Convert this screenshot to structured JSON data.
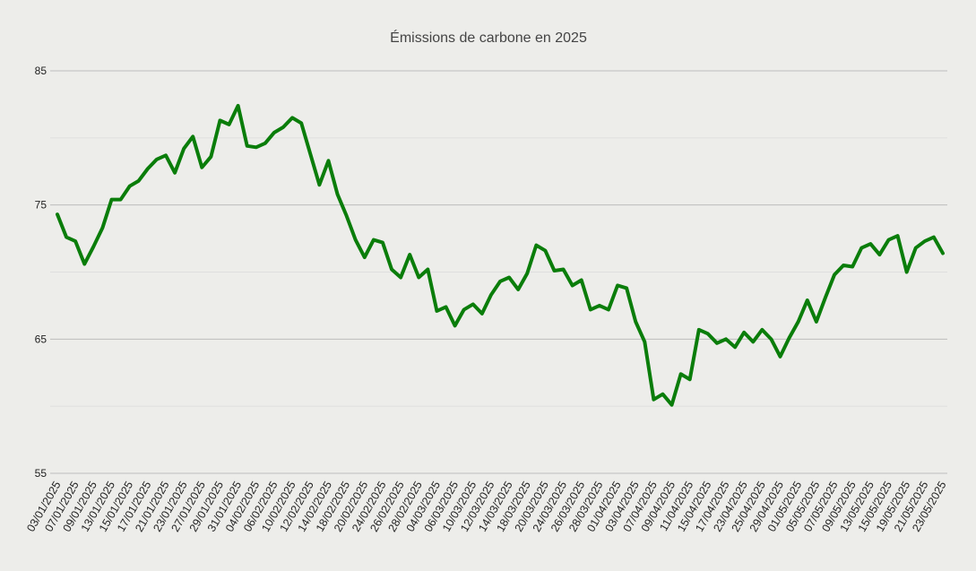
{
  "chart_data": {
    "type": "line",
    "title": "Émissions de carbone en 2025",
    "xlabel": "",
    "ylabel": "",
    "ylim": [
      55,
      85
    ],
    "y_ticks": [
      55,
      65,
      75,
      85
    ],
    "y_tick_labels": [
      "55",
      "65",
      "75",
      "85"
    ],
    "grid": true,
    "legend": "none",
    "colors": {
      "line": "#0a7d0a",
      "background": "#ededea"
    },
    "x_tick_labels": [
      "03/01/2025",
      "07/01/2025",
      "09/01/2025",
      "13/01/2025",
      "15/01/2025",
      "17/01/2025",
      "21/01/2025",
      "23/01/2025",
      "27/01/2025",
      "29/01/2025",
      "31/01/2025",
      "04/02/2025",
      "06/02/2025",
      "10/02/2025",
      "12/02/2025",
      "14/02/2025",
      "18/02/2025",
      "20/02/2025",
      "24/02/2025",
      "26/02/2025",
      "28/02/2025",
      "04/03/2025",
      "06/03/2025",
      "10/03/2025",
      "12/03/2025",
      "14/03/2025",
      "18/03/2025",
      "20/03/2025",
      "24/03/2025",
      "26/03/2025",
      "28/03/2025",
      "01/04/2025",
      "03/04/2025",
      "07/04/2025",
      "09/04/2025",
      "11/04/2025",
      "15/04/2025",
      "17/04/2025",
      "23/04/2025",
      "25/04/2025",
      "29/04/2025",
      "01/05/2025",
      "05/05/2025",
      "07/05/2025",
      "09/05/2025",
      "13/05/2025",
      "15/05/2025",
      "19/05/2025",
      "21/05/2025",
      "23/05/2025"
    ],
    "series": [
      {
        "values": [
          74.3,
          72.6,
          72.3,
          70.6,
          71.9,
          73.3,
          75.4,
          75.4,
          76.4,
          76.8,
          77.7,
          78.4,
          78.7,
          77.4,
          79.2,
          80.1,
          77.8,
          78.6,
          81.3,
          81.0,
          82.4,
          79.4,
          79.3,
          79.6,
          80.4,
          80.8,
          81.5,
          81.1,
          78.8,
          76.5,
          78.3,
          75.8,
          74.2,
          72.4,
          71.1,
          72.4,
          72.2,
          70.2,
          69.6,
          71.3,
          69.6,
          70.2,
          67.1,
          67.4,
          66.0,
          67.2,
          67.6,
          66.9,
          68.3,
          69.3,
          69.6,
          68.7,
          69.9,
          72.0,
          71.6,
          70.1,
          70.2,
          69.0,
          69.4,
          67.2,
          67.5,
          67.2,
          69.0,
          68.8,
          66.3,
          64.8,
          60.5,
          60.9,
          60.1,
          62.4,
          62.0,
          65.7,
          65.4,
          64.7,
          65.0,
          64.4,
          65.5,
          64.8,
          65.7,
          65.0,
          63.7,
          65.1,
          66.3,
          67.9,
          66.3,
          68.1,
          69.8,
          70.5,
          70.4,
          71.8,
          72.1,
          71.3,
          72.4,
          72.7,
          70.0,
          71.8,
          72.3,
          72.6,
          71.4
        ]
      }
    ]
  }
}
